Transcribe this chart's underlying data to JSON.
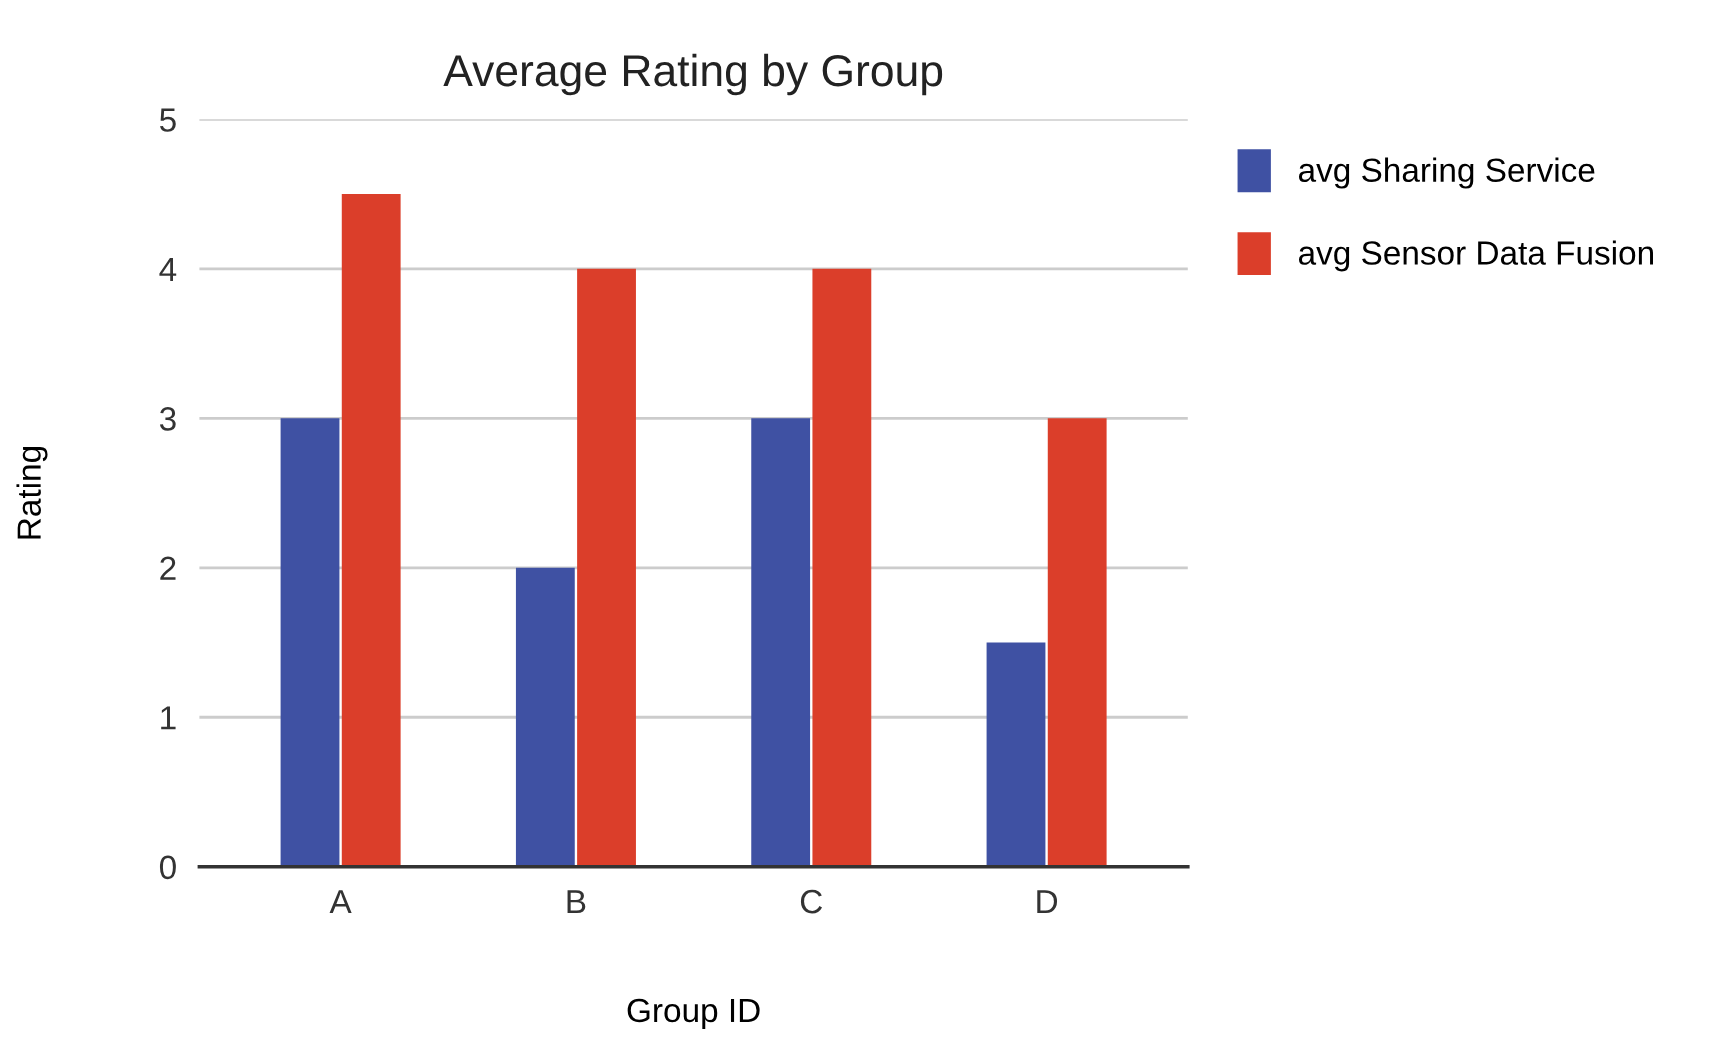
{
  "chart_data": {
    "type": "bar",
    "title": "Average Rating by Group",
    "xlabel": "Group ID",
    "ylabel": "Rating",
    "categories": [
      "A",
      "B",
      "C",
      "D"
    ],
    "series": [
      {
        "name": "avg Sharing Service",
        "color": "#3f51a3",
        "values": [
          3,
          2,
          3,
          1.5
        ]
      },
      {
        "name": "avg Sensor Data Fusion",
        "color": "#db3e2a",
        "values": [
          4.5,
          4,
          4,
          3
        ]
      }
    ],
    "ylim": [
      0,
      5
    ],
    "yticks": [
      0,
      1,
      2,
      3,
      4,
      5
    ],
    "grid": "y",
    "legend": "top right"
  }
}
